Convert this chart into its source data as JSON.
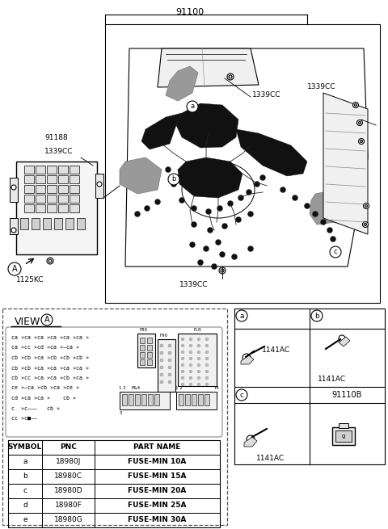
{
  "bg_color": "#ffffff",
  "main_part_number": "91100",
  "label_91188": "91188",
  "label_1339CC": "1339CC",
  "label_1125KC": "1125KC",
  "label_91110B": "91110B",
  "label_1141AC": "1141AC",
  "view_title": "VIEW",
  "table_headers": [
    "SYMBOL",
    "PNC",
    "PART NAME"
  ],
  "table_rows": [
    [
      "a",
      "18980J",
      "FUSE-MIN 10A"
    ],
    [
      "b",
      "18980C",
      "FUSE-MIN 15A"
    ],
    [
      "c",
      "18980D",
      "FUSE-MIN 20A"
    ],
    [
      "d",
      "18980F",
      "FUSE-MIN 25A"
    ],
    [
      "e",
      "18980G",
      "FUSE-MIN 30A"
    ]
  ],
  "fuse_lines": [
    "ca »ca »ca »ca »ca »ca »",
    "ca »cc »cd »ca »——ca »",
    "cb »cb »ca »cb »cb »cb »",
    "cb »cb »ca »ca »ca »ca »",
    "cb »cc »ca »ca »cb »ca »",
    "ce »——ca »cb »ca »ce »",
    "cd »ca »ca »    cb »",
    "c  »c————   cb »",
    "cc »c■———"
  ],
  "line_color": "#000000",
  "gray_color": "#888888",
  "light_gray": "#dddddd",
  "medium_gray": "#aaaaaa"
}
